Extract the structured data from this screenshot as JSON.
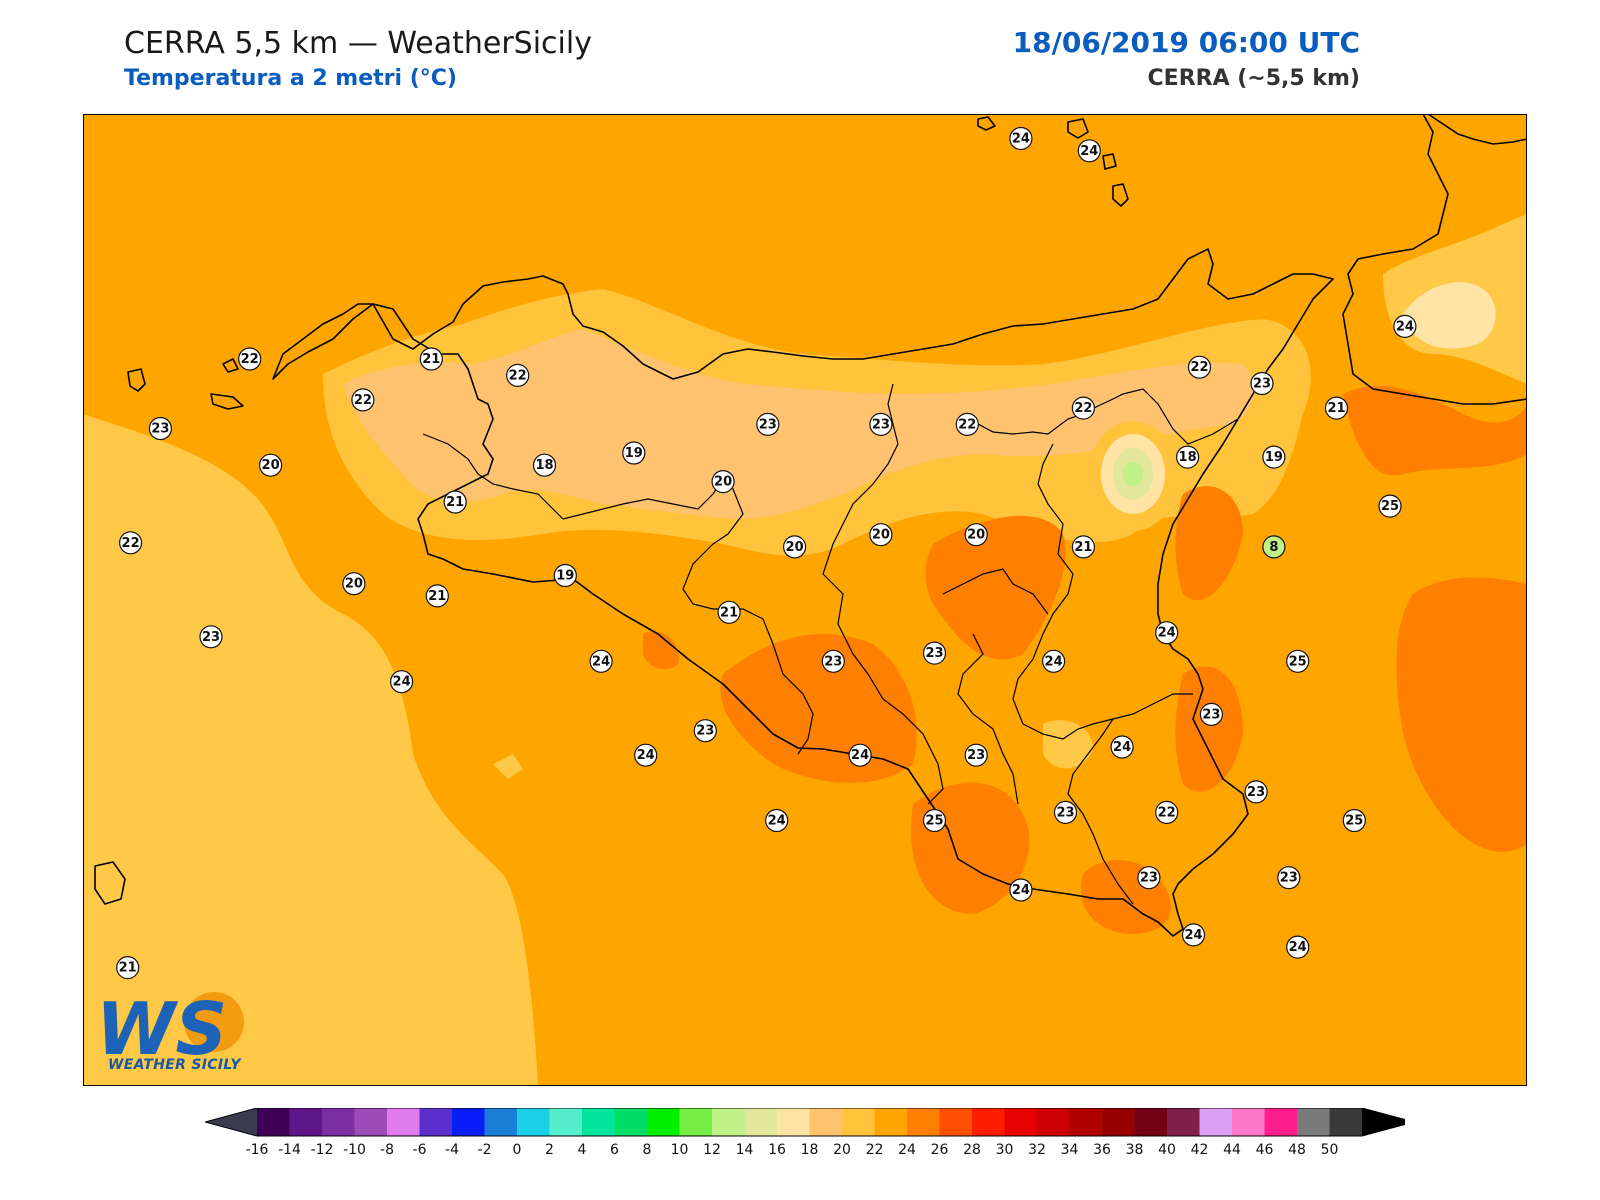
{
  "header": {
    "title": "CERRA 5,5 km — WeatherSicily",
    "subtitle": "Temperatura a 2 metri (°C)",
    "datetime": "18/06/2019 06:00 UTC",
    "model": "CERRA (~5,5 km)"
  },
  "logo": {
    "mark": "WS",
    "text": "WEATHER SICILY"
  },
  "colors": {
    "sea_warm": "#ffa500",
    "sea_cool": "#ffc947",
    "band_26": "#ff7f00",
    "band_18": "#ffe4a6",
    "band_20": "#ffc26e",
    "accent": "#0a5cbd"
  },
  "colorbar": {
    "ticks": [
      "-16",
      "-14",
      "-12",
      "-10",
      "-8",
      "-6",
      "-4",
      "-2",
      "0",
      "2",
      "4",
      "6",
      "8",
      "10",
      "12",
      "14",
      "16",
      "18",
      "20",
      "22",
      "24",
      "26",
      "28",
      "30",
      "32",
      "34",
      "36",
      "38",
      "40",
      "42",
      "44",
      "46",
      "48",
      "50"
    ],
    "colors": [
      "#3f0055",
      "#5f1689",
      "#7b2fa0",
      "#9b4cb8",
      "#e07cf0",
      "#5a2fcc",
      "#0a1efa",
      "#1a7fd8",
      "#1ad0e6",
      "#55eecc",
      "#00e59b",
      "#00dd66",
      "#00ee00",
      "#77ee44",
      "#c0f088",
      "#e1e79b",
      "#ffe4a6",
      "#ffc26e",
      "#ffc33c",
      "#ffa500",
      "#ff7f00",
      "#ff4f00",
      "#ff1d00",
      "#e80000",
      "#cc0000",
      "#b00000",
      "#960000",
      "#730014",
      "#812046",
      "#d9a0f2",
      "#ff78c8",
      "#ff1f8c",
      "#7a7a7a",
      "#3a3a3a"
    ],
    "under_color": "#3b3b4f",
    "over_color": "#000000"
  },
  "map_data": {
    "variable": "t2m",
    "unit": "°C",
    "stations": [
      {
        "v": "24",
        "lon": 14.95,
        "lat": 38.82
      },
      {
        "v": "24",
        "lon": 15.18,
        "lat": 38.79
      },
      {
        "v": "22",
        "lon": 12.36,
        "lat": 38.28
      },
      {
        "v": "21",
        "lon": 12.97,
        "lat": 38.28
      },
      {
        "v": "22",
        "lon": 13.26,
        "lat": 38.24
      },
      {
        "v": "22",
        "lon": 12.74,
        "lat": 38.18
      },
      {
        "v": "23",
        "lon": 12.06,
        "lat": 38.11
      },
      {
        "v": "20",
        "lon": 12.43,
        "lat": 38.02
      },
      {
        "v": "22",
        "lon": 11.96,
        "lat": 37.83
      },
      {
        "v": "23",
        "lon": 12.23,
        "lat": 37.6
      },
      {
        "v": "21",
        "lon": 13.05,
        "lat": 37.93
      },
      {
        "v": "18",
        "lon": 13.35,
        "lat": 38.02
      },
      {
        "v": "19",
        "lon": 13.65,
        "lat": 38.05
      },
      {
        "v": "20",
        "lon": 13.95,
        "lat": 37.98
      },
      {
        "v": "23",
        "lon": 14.1,
        "lat": 38.12
      },
      {
        "v": "23",
        "lon": 14.48,
        "lat": 38.12
      },
      {
        "v": "22",
        "lon": 14.77,
        "lat": 38.12
      },
      {
        "v": "22",
        "lon": 15.16,
        "lat": 38.16
      },
      {
        "v": "22",
        "lon": 15.55,
        "lat": 38.26
      },
      {
        "v": "23",
        "lon": 15.76,
        "lat": 38.22
      },
      {
        "v": "21",
        "lon": 16.01,
        "lat": 38.16
      },
      {
        "v": "24",
        "lon": 16.24,
        "lat": 38.36
      },
      {
        "v": "20",
        "lon": 12.71,
        "lat": 37.73
      },
      {
        "v": "21",
        "lon": 12.99,
        "lat": 37.7
      },
      {
        "v": "19",
        "lon": 13.42,
        "lat": 37.75
      },
      {
        "v": "21",
        "lon": 13.97,
        "lat": 37.66
      },
      {
        "v": "20",
        "lon": 14.19,
        "lat": 37.82
      },
      {
        "v": "20",
        "lon": 14.48,
        "lat": 37.85
      },
      {
        "v": "20",
        "lon": 14.8,
        "lat": 37.85
      },
      {
        "v": "21",
        "lon": 15.16,
        "lat": 37.82
      },
      {
        "v": "18",
        "lon": 15.51,
        "lat": 38.04
      },
      {
        "v": "19",
        "lon": 15.8,
        "lat": 38.04
      },
      {
        "v": "25",
        "lon": 16.19,
        "lat": 37.92
      },
      {
        "v": "8",
        "lon": 15.8,
        "lat": 37.82
      },
      {
        "v": "24",
        "lon": 13.54,
        "lat": 37.54
      },
      {
        "v": "24",
        "lon": 12.87,
        "lat": 37.49
      },
      {
        "v": "23",
        "lon": 14.32,
        "lat": 37.54
      },
      {
        "v": "23",
        "lon": 14.66,
        "lat": 37.56
      },
      {
        "v": "24",
        "lon": 15.06,
        "lat": 37.54
      },
      {
        "v": "24",
        "lon": 15.44,
        "lat": 37.61
      },
      {
        "v": "25",
        "lon": 15.88,
        "lat": 37.54
      },
      {
        "v": "23",
        "lon": 13.89,
        "lat": 37.37
      },
      {
        "v": "24",
        "lon": 13.69,
        "lat": 37.31
      },
      {
        "v": "24",
        "lon": 14.41,
        "lat": 37.31
      },
      {
        "v": "23",
        "lon": 14.8,
        "lat": 37.31
      },
      {
        "v": "24",
        "lon": 15.29,
        "lat": 37.33
      },
      {
        "v": "23",
        "lon": 15.59,
        "lat": 37.41
      },
      {
        "v": "23",
        "lon": 15.74,
        "lat": 37.22
      },
      {
        "v": "24",
        "lon": 14.13,
        "lat": 37.15
      },
      {
        "v": "25",
        "lon": 14.66,
        "lat": 37.15
      },
      {
        "v": "23",
        "lon": 15.1,
        "lat": 37.17
      },
      {
        "v": "22",
        "lon": 15.44,
        "lat": 37.17
      },
      {
        "v": "25",
        "lon": 16.07,
        "lat": 37.15
      },
      {
        "v": "24",
        "lon": 14.95,
        "lat": 36.98
      },
      {
        "v": "23",
        "lon": 15.38,
        "lat": 37.01
      },
      {
        "v": "23",
        "lon": 15.85,
        "lat": 37.01
      },
      {
        "v": "24",
        "lon": 15.53,
        "lat": 36.87
      },
      {
        "v": "24",
        "lon": 15.88,
        "lat": 36.84
      },
      {
        "v": "21",
        "lon": 11.95,
        "lat": 36.79
      }
    ]
  }
}
